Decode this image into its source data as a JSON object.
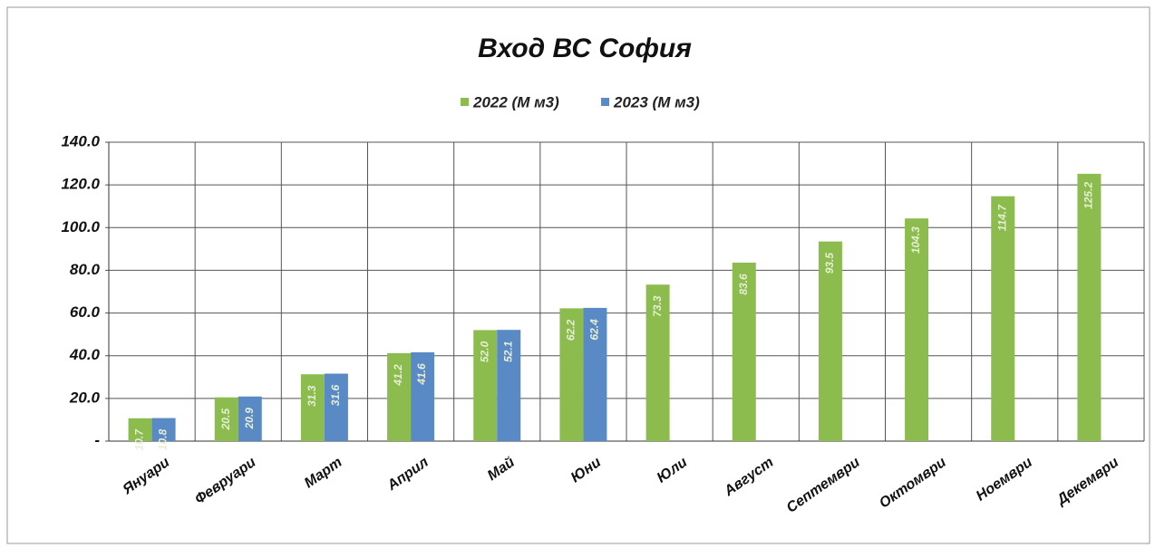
{
  "chart_data": {
    "type": "bar",
    "title": "Вход ВС София",
    "categories": [
      "Януари",
      "Февруари",
      "Март",
      "Април",
      "Май",
      "Юни",
      "Юли",
      "Август",
      "Септември",
      "Октомври",
      "Ноември",
      "Декември"
    ],
    "series": [
      {
        "name": "2022 (М м3)",
        "color": "#8cbb4e",
        "values": [
          10.7,
          20.5,
          31.3,
          41.2,
          52.0,
          62.2,
          73.3,
          83.6,
          93.5,
          104.3,
          114.7,
          125.2
        ],
        "value_labels": [
          "10.7",
          "20.5",
          "31.3",
          "41.2",
          "52.0",
          "62.2",
          "73.3",
          "83.6",
          "93.5",
          "104.3",
          "114.7",
          "125.2"
        ]
      },
      {
        "name": "2023 (М м3)",
        "color": "#5a8ac6",
        "values": [
          10.8,
          20.9,
          31.6,
          41.6,
          52.1,
          62.4,
          null,
          null,
          null,
          null,
          null,
          null
        ],
        "value_labels": [
          "10.8",
          "20.9",
          "31.6",
          "41.6",
          "52.1",
          "62.4",
          null,
          null,
          null,
          null,
          null,
          null
        ]
      }
    ],
    "ylim": [
      0,
      140
    ],
    "yticks": [
      {
        "value": 0,
        "label": "-"
      },
      {
        "value": 20,
        "label": "20.0"
      },
      {
        "value": 40,
        "label": "40.0"
      },
      {
        "value": 60,
        "label": "60.0"
      },
      {
        "value": 80,
        "label": "80.0"
      },
      {
        "value": 100,
        "label": "100.0"
      },
      {
        "value": 120,
        "label": "120.0"
      },
      {
        "value": 140,
        "label": "140.0"
      }
    ],
    "grid": true,
    "legend": "top"
  }
}
